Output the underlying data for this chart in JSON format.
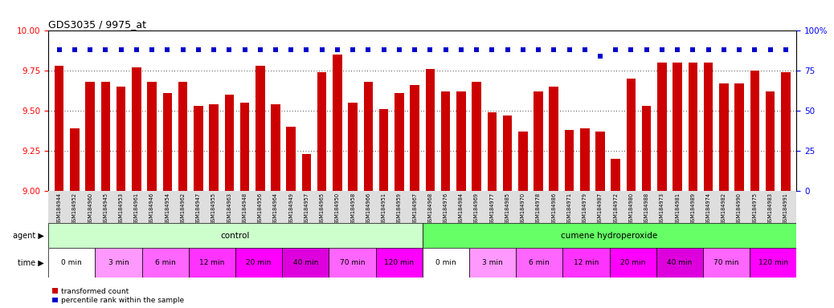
{
  "title": "GDS3035 / 9975_at",
  "gsm_labels": [
    "GSM184944",
    "GSM184952",
    "GSM184960",
    "GSM184945",
    "GSM184953",
    "GSM184961",
    "GSM184946",
    "GSM184954",
    "GSM184962",
    "GSM184947",
    "GSM184955",
    "GSM184963",
    "GSM184948",
    "GSM184956",
    "GSM184964",
    "GSM184949",
    "GSM184957",
    "GSM184965",
    "GSM184950",
    "GSM184958",
    "GSM184966",
    "GSM184951",
    "GSM184959",
    "GSM184967",
    "GSM184968",
    "GSM184976",
    "GSM184984",
    "GSM184969",
    "GSM184977",
    "GSM184985",
    "GSM184970",
    "GSM184978",
    "GSM184986",
    "GSM184971",
    "GSM184979",
    "GSM184987",
    "GSM184972",
    "GSM184980",
    "GSM184988",
    "GSM184973",
    "GSM184981",
    "GSM184989",
    "GSM184974",
    "GSM184982",
    "GSM184990",
    "GSM184975",
    "GSM184983",
    "GSM184991"
  ],
  "bar_values": [
    9.78,
    9.39,
    9.68,
    9.68,
    9.65,
    9.77,
    9.68,
    9.61,
    9.68,
    9.53,
    9.54,
    9.6,
    9.55,
    9.78,
    9.54,
    9.4,
    9.23,
    9.74,
    9.85,
    9.55,
    9.68,
    9.51,
    9.61,
    9.66,
    9.76,
    9.62,
    9.62,
    9.68,
    9.49,
    9.47,
    9.37,
    9.62,
    9.65,
    9.38,
    9.39,
    9.37,
    9.2,
    9.7,
    9.53,
    9.8,
    9.8,
    9.8,
    9.8,
    9.67,
    9.67,
    9.75,
    9.62,
    9.74
  ],
  "percentile_values": [
    88,
    88,
    88,
    88,
    88,
    88,
    88,
    88,
    88,
    88,
    88,
    88,
    88,
    88,
    88,
    88,
    88,
    88,
    88,
    88,
    88,
    88,
    88,
    88,
    88,
    88,
    88,
    88,
    88,
    88,
    88,
    88,
    88,
    88,
    88,
    84,
    88,
    88,
    88,
    88,
    88,
    88,
    88,
    88,
    88,
    88,
    88,
    88
  ],
  "ylim_left": [
    9.0,
    10.0
  ],
  "ylim_right": [
    0,
    100
  ],
  "yticks_left": [
    9.0,
    9.25,
    9.5,
    9.75,
    10.0
  ],
  "yticks_right": [
    0,
    25,
    50,
    75,
    100
  ],
  "bar_color": "#CC0000",
  "dot_color": "#0000CC",
  "bg_color": "#FFFFFF",
  "agent_groups": [
    {
      "label": "control",
      "start": 0,
      "end": 24,
      "color": "#CCFFCC"
    },
    {
      "label": "cumene hydroperoxide",
      "start": 24,
      "end": 48,
      "color": "#66FF66"
    }
  ],
  "time_groups": [
    {
      "label": "0 min",
      "start": 0,
      "end": 3,
      "color": "#FFFFFF"
    },
    {
      "label": "3 min",
      "start": 3,
      "end": 6,
      "color": "#FF99FF"
    },
    {
      "label": "6 min",
      "start": 6,
      "end": 9,
      "color": "#FF66FF"
    },
    {
      "label": "12 min",
      "start": 9,
      "end": 12,
      "color": "#FF33FF"
    },
    {
      "label": "20 min",
      "start": 12,
      "end": 15,
      "color": "#FF00FF"
    },
    {
      "label": "40 min",
      "start": 15,
      "end": 18,
      "color": "#DD00DD"
    },
    {
      "label": "70 min",
      "start": 18,
      "end": 21,
      "color": "#FF66FF"
    },
    {
      "label": "120 min",
      "start": 21,
      "end": 24,
      "color": "#FF00FF"
    },
    {
      "label": "0 min",
      "start": 24,
      "end": 27,
      "color": "#FFFFFF"
    },
    {
      "label": "3 min",
      "start": 27,
      "end": 30,
      "color": "#FF99FF"
    },
    {
      "label": "6 min",
      "start": 30,
      "end": 33,
      "color": "#FF66FF"
    },
    {
      "label": "12 min",
      "start": 33,
      "end": 36,
      "color": "#FF33FF"
    },
    {
      "label": "20 min",
      "start": 36,
      "end": 39,
      "color": "#FF00FF"
    },
    {
      "label": "40 min",
      "start": 39,
      "end": 42,
      "color": "#DD00DD"
    },
    {
      "label": "70 min",
      "start": 42,
      "end": 45,
      "color": "#FF66FF"
    },
    {
      "label": "120 min",
      "start": 45,
      "end": 48,
      "color": "#FF00FF"
    }
  ],
  "n_bars": 48
}
